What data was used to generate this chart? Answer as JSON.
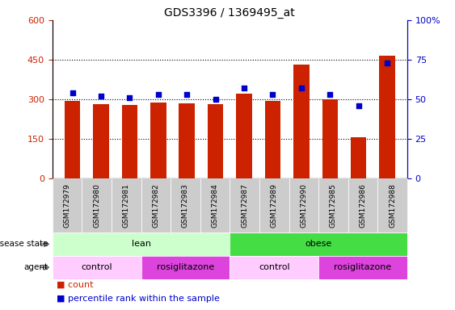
{
  "title": "GDS3396 / 1369495_at",
  "samples": [
    "GSM172979",
    "GSM172980",
    "GSM172981",
    "GSM172982",
    "GSM172983",
    "GSM172984",
    "GSM172987",
    "GSM172989",
    "GSM172990",
    "GSM172985",
    "GSM172986",
    "GSM172988"
  ],
  "counts": [
    295,
    280,
    278,
    288,
    283,
    282,
    320,
    293,
    430,
    300,
    155,
    465
  ],
  "percentile_ranks": [
    54,
    52,
    51,
    53,
    53,
    50,
    57,
    53,
    57,
    53,
    46,
    73
  ],
  "ylim_left": [
    0,
    600
  ],
  "ylim_right": [
    0,
    100
  ],
  "yticks_left": [
    0,
    150,
    300,
    450,
    600
  ],
  "yticks_right": [
    0,
    25,
    50,
    75,
    100
  ],
  "bar_color": "#cc2200",
  "scatter_color": "#0000cc",
  "disease_state": [
    {
      "label": "lean",
      "span": [
        0,
        6
      ],
      "color": "#ccffcc"
    },
    {
      "label": "obese",
      "span": [
        6,
        12
      ],
      "color": "#44dd44"
    }
  ],
  "agent": [
    {
      "label": "control",
      "span": [
        0,
        3
      ],
      "color": "#ffccff"
    },
    {
      "label": "rosiglitazone",
      "span": [
        3,
        6
      ],
      "color": "#dd44dd"
    },
    {
      "label": "control",
      "span": [
        6,
        9
      ],
      "color": "#ffccff"
    },
    {
      "label": "rosiglitazone",
      "span": [
        9,
        12
      ],
      "color": "#dd44dd"
    }
  ],
  "tick_bg_color": "#cccccc",
  "tick_divider_color": "#999999",
  "label_font_size": 8,
  "title_fontsize": 10,
  "bar_width": 0.55,
  "background_color": "#ffffff"
}
